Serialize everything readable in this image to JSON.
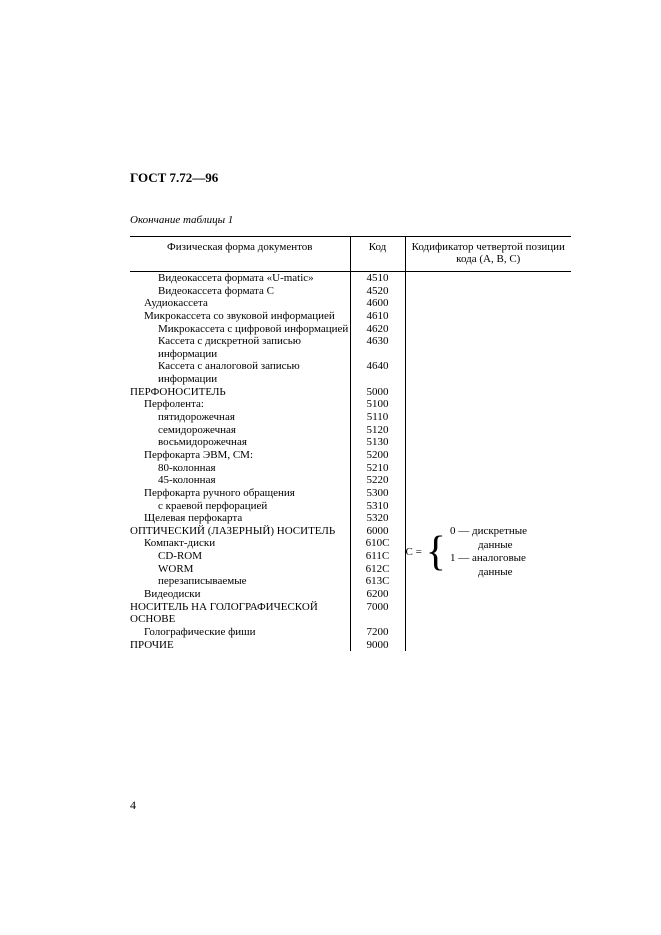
{
  "header": "ГОСТ 7.72—96",
  "caption": "Окончание таблицы 1",
  "columns": {
    "form": "Физическая форма документов",
    "code": "Код",
    "codifier": "Кодификатор четвертой позиции кода (А, В, С)"
  },
  "rows": [
    {
      "indent": 2,
      "text": "Видеокассета формата «U-matic»",
      "code": "4510"
    },
    {
      "indent": 2,
      "text": "Видеокассета формата С",
      "code": "4520"
    },
    {
      "indent": 1,
      "text": "Аудиокассета",
      "code": "4600"
    },
    {
      "indent": 1,
      "text": "Микрокассета со звуковой информацией",
      "code": "4610"
    },
    {
      "indent": 2,
      "text": "Микрокассета с цифровой информацией",
      "code": "4620"
    },
    {
      "indent": 2,
      "text": "Кассета с дискретной записью информации",
      "code": "4630"
    },
    {
      "indent": 2,
      "text": "Кассета с аналоговой записью информации",
      "code": "4640"
    },
    {
      "indent": 0,
      "caps": true,
      "text": "ПЕРФОНОСИТЕЛЬ",
      "code": "5000"
    },
    {
      "indent": 1,
      "text": "Перфолента:",
      "code": "5100"
    },
    {
      "indent": 2,
      "text": "пятидорожечная",
      "code": "5110"
    },
    {
      "indent": 2,
      "text": "семидорожечная",
      "code": "5120"
    },
    {
      "indent": 2,
      "text": "восьмидорожечная",
      "code": "5130"
    },
    {
      "indent": 1,
      "text": "Перфокарта ЭВМ, СМ:",
      "code": "5200"
    },
    {
      "indent": 2,
      "text": "80-колонная",
      "code": "5210"
    },
    {
      "indent": 2,
      "text": "45-колонная",
      "code": "5220"
    },
    {
      "indent": 1,
      "text": "Перфокарта ручного обращения",
      "code": "5300"
    },
    {
      "indent": 2,
      "text": "с краевой перфорацией",
      "code": "5310"
    },
    {
      "indent": 1,
      "text": "Щелевая перфокарта",
      "code": "5320"
    },
    {
      "indent": 0,
      "caps": true,
      "text": "ОПТИЧЕСКИЙ    (ЛАЗЕРНЫЙ) НОСИТЕЛЬ",
      "code": "6000"
    },
    {
      "indent": 1,
      "text": "Компакт-диски",
      "code": "610С"
    },
    {
      "indent": 2,
      "text": "CD-ROM",
      "code": "611С"
    },
    {
      "indent": 2,
      "text": "WORM",
      "code": "612С"
    },
    {
      "indent": 2,
      "text": "перезаписываемые",
      "code": "613С"
    },
    {
      "indent": 1,
      "text": "Видеодиски",
      "code": "6200"
    },
    {
      "indent": 0,
      "caps": true,
      "text": "НОСИТЕЛЬ НА ГОЛОГРАФИЧЕСКОЙ ОСНОВЕ",
      "code": "7000"
    },
    {
      "indent": 1,
      "text": "Голографические фиши",
      "code": "7200"
    },
    {
      "indent": 0,
      "caps": true,
      "text": "ПРОЧИЕ",
      "code": "9000"
    }
  ],
  "codifier": {
    "prefix": "С =",
    "options": [
      "0 — дискретные данные",
      "1 — аналоговые данные"
    ]
  },
  "page_number": "4"
}
